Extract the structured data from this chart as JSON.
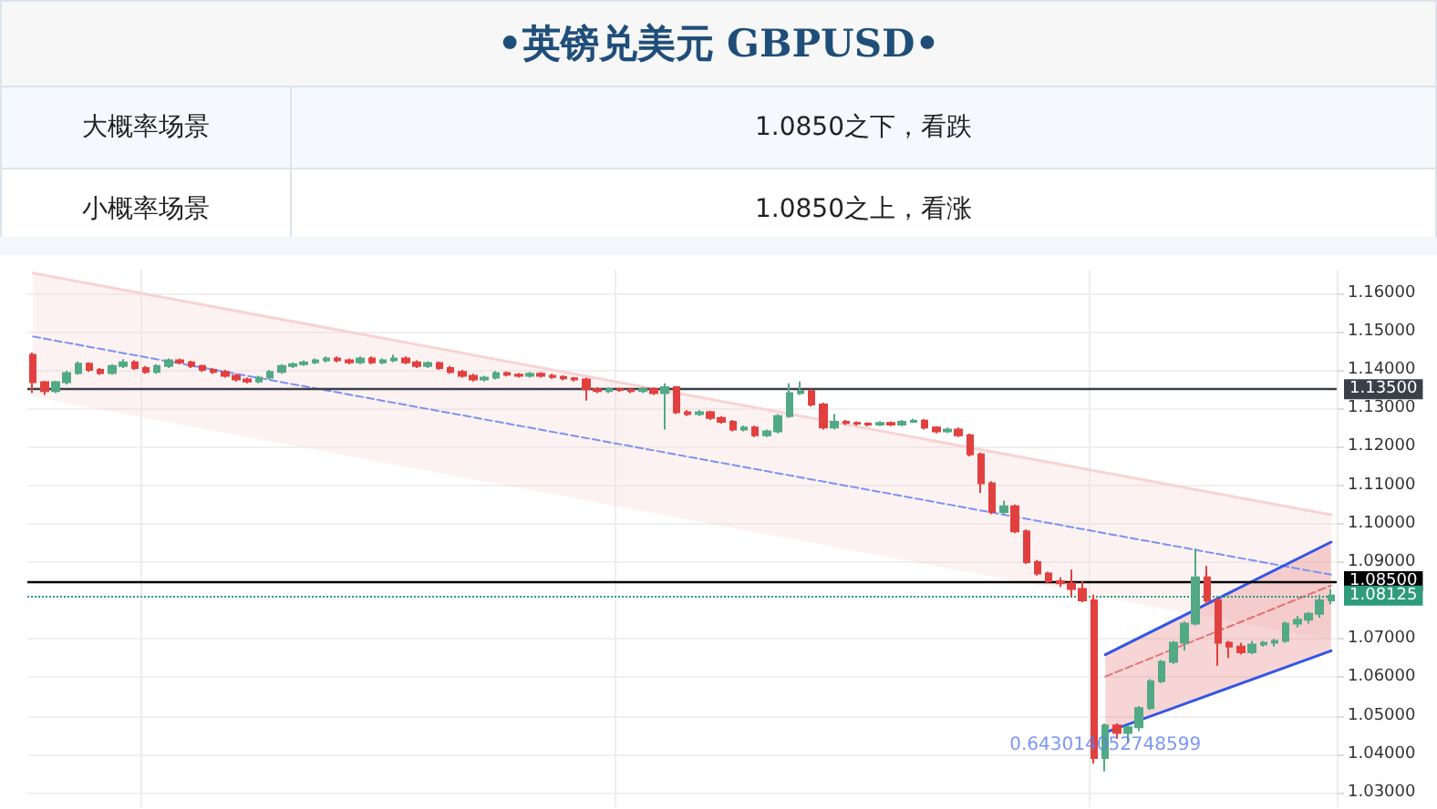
{
  "chart_data": {
    "type": "candlestick",
    "title": "•英镑兑美元   GBPUSD•",
    "annotations": [
      "大概率场景",
      "1.0850之下，看跌",
      "小概率场景",
      "1.0850之上，看涨",
      {
        "text": "0.643014052748599",
        "y": 1.0423
      }
    ],
    "categories": [
      null,
      null,
      null,
      null,
      null,
      null,
      null,
      null,
      null,
      null,
      null,
      null,
      null,
      null,
      null,
      null,
      null,
      null,
      null,
      null,
      null,
      null,
      null,
      null,
      null,
      null,
      null,
      null,
      null,
      null,
      null,
      null,
      null,
      null,
      null,
      null,
      null,
      null,
      null,
      null,
      null,
      null,
      null,
      null,
      null,
      null,
      null,
      null,
      null,
      null,
      null,
      null,
      null,
      null,
      null,
      null,
      null,
      null,
      null,
      null,
      null,
      null,
      null,
      null,
      null,
      null,
      null,
      null,
      null,
      null,
      null,
      null,
      null,
      null,
      null,
      null,
      null,
      null,
      null,
      null,
      null,
      null,
      null,
      null,
      null,
      null,
      null,
      null,
      null,
      null,
      null,
      null,
      null,
      null,
      null,
      null,
      null,
      null,
      null,
      null,
      null,
      null,
      null,
      null,
      null,
      null,
      null,
      null,
      null,
      null,
      null,
      null,
      null,
      null,
      null,
      null
    ],
    "ohlc": [
      [
        1.1439,
        1.1445,
        1.134,
        1.1368
      ],
      [
        1.1368,
        1.1372,
        1.1335,
        1.1345
      ],
      [
        1.1345,
        1.1372,
        1.134,
        1.1368
      ],
      [
        1.1368,
        1.1398,
        1.1362,
        1.1392
      ],
      [
        1.1392,
        1.1422,
        1.1388,
        1.1416
      ],
      [
        1.1416,
        1.142,
        1.1395,
        1.14
      ],
      [
        1.14,
        1.1405,
        1.1387,
        1.1392
      ],
      [
        1.1392,
        1.1415,
        1.1388,
        1.141
      ],
      [
        1.141,
        1.1428,
        1.1405,
        1.142
      ],
      [
        1.142,
        1.1425,
        1.14,
        1.1405
      ],
      [
        1.1405,
        1.141,
        1.139,
        1.1395
      ],
      [
        1.1395,
        1.1415,
        1.139,
        1.141
      ],
      [
        1.141,
        1.143,
        1.1405,
        1.1425
      ],
      [
        1.1425,
        1.143,
        1.1415,
        1.142
      ],
      [
        1.142,
        1.1424,
        1.1405,
        1.141
      ],
      [
        1.141,
        1.1414,
        1.1395,
        1.14
      ],
      [
        1.14,
        1.1405,
        1.139,
        1.1395
      ],
      [
        1.1395,
        1.14,
        1.138,
        1.1385
      ],
      [
        1.1385,
        1.139,
        1.137,
        1.1375
      ],
      [
        1.1375,
        1.138,
        1.1365,
        1.137
      ],
      [
        1.137,
        1.1385,
        1.1365,
        1.138
      ],
      [
        1.138,
        1.14,
        1.1375,
        1.1395
      ],
      [
        1.1395,
        1.1415,
        1.139,
        1.141
      ],
      [
        1.141,
        1.142,
        1.1405,
        1.1415
      ],
      [
        1.1415,
        1.1425,
        1.141,
        1.142
      ],
      [
        1.142,
        1.143,
        1.1415,
        1.1425
      ],
      [
        1.1425,
        1.1435,
        1.142,
        1.143
      ],
      [
        1.143,
        1.1435,
        1.142,
        1.1425
      ],
      [
        1.1425,
        1.143,
        1.1415,
        1.142
      ],
      [
        1.142,
        1.1435,
        1.1415,
        1.143
      ],
      [
        1.143,
        1.1435,
        1.1415,
        1.142
      ],
      [
        1.142,
        1.143,
        1.1415,
        1.1425
      ],
      [
        1.1425,
        1.144,
        1.142,
        1.143
      ],
      [
        1.143,
        1.1435,
        1.1415,
        1.142
      ],
      [
        1.142,
        1.1425,
        1.1405,
        1.141
      ],
      [
        1.141,
        1.1422,
        1.1405,
        1.1418
      ],
      [
        1.1418,
        1.1422,
        1.14,
        1.1405
      ],
      [
        1.1405,
        1.141,
        1.139,
        1.1395
      ],
      [
        1.1395,
        1.14,
        1.138,
        1.1385
      ],
      [
        1.1385,
        1.139,
        1.137,
        1.1375
      ],
      [
        1.1375,
        1.1385,
        1.137,
        1.138
      ],
      [
        1.138,
        1.1397,
        1.1375,
        1.1392
      ],
      [
        1.1392,
        1.1396,
        1.1383,
        1.1388
      ],
      [
        1.1388,
        1.1392,
        1.138,
        1.1385
      ],
      [
        1.1385,
        1.1395,
        1.138,
        1.139
      ],
      [
        1.139,
        1.1394,
        1.138,
        1.1385
      ],
      [
        1.1385,
        1.139,
        1.1377,
        1.1382
      ],
      [
        1.1382,
        1.1386,
        1.1373,
        1.1378
      ],
      [
        1.1378,
        1.1382,
        1.137,
        1.1375
      ],
      [
        1.1375,
        1.138,
        1.132,
        1.135
      ],
      [
        1.135,
        1.1355,
        1.134,
        1.1345
      ],
      [
        1.1345,
        1.1355,
        1.134,
        1.135
      ],
      [
        1.135,
        1.1354,
        1.1343,
        1.1348
      ],
      [
        1.1348,
        1.1352,
        1.134,
        1.1345
      ],
      [
        1.1345,
        1.1355,
        1.134,
        1.135
      ],
      [
        1.135,
        1.1354,
        1.1335,
        1.134
      ],
      [
        1.134,
        1.1365,
        1.1245,
        1.1355
      ],
      [
        1.1355,
        1.1358,
        1.1285,
        1.129
      ],
      [
        1.129,
        1.1295,
        1.128,
        1.1285
      ],
      [
        1.1285,
        1.1295,
        1.128,
        1.129
      ],
      [
        1.129,
        1.1294,
        1.127,
        1.1275
      ],
      [
        1.1275,
        1.128,
        1.126,
        1.1265
      ],
      [
        1.1265,
        1.127,
        1.124,
        1.1245
      ],
      [
        1.1245,
        1.1255,
        1.124,
        1.125
      ],
      [
        1.125,
        1.1255,
        1.1225,
        1.123
      ],
      [
        1.123,
        1.1245,
        1.1225,
        1.124
      ],
      [
        1.124,
        1.1285,
        1.1235,
        1.128
      ],
      [
        1.128,
        1.1365,
        1.1275,
        1.134
      ],
      [
        1.134,
        1.137,
        1.1335,
        1.1345
      ],
      [
        1.1345,
        1.135,
        1.1305,
        1.131
      ],
      [
        1.131,
        1.1315,
        1.1245,
        1.125
      ],
      [
        1.125,
        1.1285,
        1.1245,
        1.1265
      ],
      [
        1.1265,
        1.127,
        1.1257,
        1.1262
      ],
      [
        1.1262,
        1.1266,
        1.1255,
        1.126
      ],
      [
        1.126,
        1.1264,
        1.1253,
        1.1258
      ],
      [
        1.1258,
        1.1267,
        1.1254,
        1.1262
      ],
      [
        1.1262,
        1.1266,
        1.1254,
        1.1258
      ],
      [
        1.1258,
        1.127,
        1.1254,
        1.1265
      ],
      [
        1.1265,
        1.1273,
        1.1262,
        1.1268
      ],
      [
        1.1268,
        1.1272,
        1.1245,
        1.125
      ],
      [
        1.125,
        1.1254,
        1.1235,
        1.124
      ],
      [
        1.124,
        1.125,
        1.1236,
        1.1245
      ],
      [
        1.1245,
        1.125,
        1.1225,
        1.123
      ],
      [
        1.123,
        1.1234,
        1.1175,
        1.118
      ],
      [
        1.118,
        1.1185,
        1.108,
        1.1105
      ],
      [
        1.1105,
        1.111,
        1.1025,
        1.103
      ],
      [
        1.103,
        1.106,
        1.1025,
        1.1045
      ],
      [
        1.1045,
        1.105,
        1.0975,
        1.098
      ],
      [
        1.098,
        1.0985,
        1.0895,
        1.09
      ],
      [
        1.09,
        1.0905,
        1.0865,
        1.087
      ],
      [
        1.087,
        1.0875,
        1.0845,
        1.085
      ],
      [
        1.085,
        1.086,
        1.0835,
        1.0845
      ],
      [
        1.0845,
        1.088,
        1.081,
        1.083
      ],
      [
        1.083,
        1.085,
        1.0795,
        1.08
      ],
      [
        1.08,
        1.0815,
        1.0375,
        1.039
      ],
      [
        1.039,
        1.048,
        1.0355,
        1.0475
      ],
      [
        1.0475,
        1.048,
        1.044,
        1.0455
      ],
      [
        1.0455,
        1.0475,
        1.043,
        1.047
      ],
      [
        1.047,
        1.0525,
        1.046,
        1.052
      ],
      [
        1.052,
        1.0595,
        1.0515,
        1.059
      ],
      [
        1.059,
        1.0645,
        1.0585,
        1.064
      ],
      [
        1.064,
        1.0695,
        1.0635,
        1.069
      ],
      [
        1.069,
        1.0745,
        1.067,
        1.074
      ],
      [
        1.074,
        1.0935,
        1.0735,
        1.086
      ],
      [
        1.086,
        1.089,
        1.079,
        1.08
      ],
      [
        1.08,
        1.0805,
        1.063,
        1.069
      ],
      [
        1.069,
        1.0695,
        1.065,
        1.068
      ],
      [
        1.068,
        1.069,
        1.066,
        1.0665
      ],
      [
        1.0665,
        1.0695,
        1.066,
        1.0685
      ],
      [
        1.0685,
        1.0695,
        1.068,
        1.069
      ],
      [
        1.069,
        1.07,
        1.068,
        1.0695
      ],
      [
        1.0695,
        1.0745,
        1.069,
        1.074
      ],
      [
        1.074,
        1.076,
        1.073,
        1.075
      ],
      [
        1.075,
        1.077,
        1.074,
        1.0765
      ],
      [
        1.0765,
        1.0815,
        1.0755,
        1.08
      ],
      [
        1.08,
        1.083,
        1.079,
        1.08125
      ]
    ],
    "colors": [
      "#e2403f",
      "#e2403f",
      "#52a985",
      "#52a985",
      "#52a985",
      "#e2403f",
      "#e2403f",
      "#52a985",
      "#52a985",
      "#e2403f",
      "#e2403f",
      "#52a985",
      "#52a985",
      "#e2403f",
      "#e2403f",
      "#e2403f",
      "#e2403f",
      "#e2403f",
      "#e2403f",
      "#e2403f",
      "#52a985",
      "#52a985",
      "#52a985",
      "#52a985",
      "#52a985",
      "#52a985",
      "#52a985",
      "#e2403f",
      "#e2403f",
      "#52a985",
      "#e2403f",
      "#52a985",
      "#52a985",
      "#e2403f",
      "#e2403f",
      "#52a985",
      "#e2403f",
      "#e2403f",
      "#e2403f",
      "#e2403f",
      "#52a985",
      "#52a985",
      "#e2403f",
      "#e2403f",
      "#52a985",
      "#e2403f",
      "#e2403f",
      "#e2403f",
      "#e2403f",
      "#e2403f",
      "#e2403f",
      "#52a985",
      "#e2403f",
      "#e2403f",
      "#52a985",
      "#e2403f",
      "#52a985",
      "#e2403f",
      "#e2403f",
      "#52a985",
      "#e2403f",
      "#e2403f",
      "#e2403f",
      "#52a985",
      "#e2403f",
      "#52a985",
      "#52a985",
      "#52a985",
      "#52a985",
      "#e2403f",
      "#e2403f",
      "#52a985",
      "#e2403f",
      "#e2403f",
      "#e2403f",
      "#52a985",
      "#e2403f",
      "#52a985",
      "#52a985",
      "#e2403f",
      "#e2403f",
      "#52a985",
      "#e2403f",
      "#e2403f",
      "#e2403f",
      "#e2403f",
      "#52a985",
      "#e2403f",
      "#e2403f",
      "#e2403f",
      "#e2403f",
      "#e2403f",
      "#e2403f",
      "#e2403f",
      "#e2403f",
      "#52a985",
      "#e2403f",
      "#52a985",
      "#52a985",
      "#52a985",
      "#52a985",
      "#52a985",
      "#52a985",
      "#52a985",
      "#e2403f",
      "#e2403f",
      "#e2403f",
      "#e2403f",
      "#52a985",
      "#52a985",
      "#52a985",
      "#52a985",
      "#52a985",
      "#52a985",
      "#52a985",
      "#52a985"
    ],
    "series": [
      {
        "type": "line",
        "values": [
          1.1652,
          null,
          null,
          null,
          null,
          null,
          null,
          null,
          null,
          null,
          null,
          null,
          null,
          null,
          null,
          null,
          null,
          null,
          null,
          null,
          null,
          null,
          null,
          null,
          null,
          null,
          null,
          null,
          null,
          null,
          null,
          null,
          null,
          null,
          null,
          null,
          null,
          null,
          null,
          null,
          null,
          null,
          null,
          null,
          null,
          null,
          null,
          null,
          null,
          null,
          null,
          null,
          null,
          null,
          null,
          null,
          null,
          null,
          null,
          null,
          null,
          null,
          null,
          null,
          null,
          null,
          null,
          null,
          null,
          null,
          null,
          null,
          null,
          null,
          null,
          null,
          null,
          null,
          null,
          null,
          null,
          null,
          null,
          null,
          null,
          null,
          null,
          null,
          null,
          null,
          null,
          null,
          null,
          null,
          null,
          null,
          null,
          null,
          null,
          null,
          null,
          null,
          null,
          null,
          null,
          null,
          null,
          null,
          null,
          null,
          null,
          null,
          null,
          null,
          null,
          1.1023
        ],
        "lower": [
          1.133,
          null,
          null,
          null,
          null,
          null,
          null,
          null,
          null,
          null,
          null,
          null,
          null,
          null,
          null,
          null,
          null,
          null,
          null,
          null,
          null,
          null,
          null,
          null,
          null,
          null,
          null,
          null,
          null,
          null,
          null,
          null,
          null,
          null,
          null,
          null,
          null,
          null,
          null,
          null,
          null,
          null,
          null,
          null,
          null,
          null,
          null,
          null,
          null,
          null,
          null,
          null,
          null,
          null,
          null,
          null,
          null,
          null,
          null,
          null,
          null,
          null,
          null,
          null,
          null,
          null,
          null,
          null,
          null,
          null,
          null,
          null,
          null,
          null,
          null,
          null,
          null,
          null,
          null,
          null,
          null,
          null,
          null,
          null,
          null,
          null,
          null,
          null,
          null,
          null,
          null,
          null,
          null,
          null,
          null,
          null,
          null,
          null,
          null,
          null,
          null,
          null,
          null,
          null,
          null,
          null,
          null,
          null,
          null,
          null,
          null,
          null,
          null,
          null,
          null,
          1.0697
        ],
        "upper": [
          1.1652,
          null,
          null,
          null,
          null,
          null,
          null,
          null,
          null,
          null,
          null,
          null,
          null,
          null,
          null,
          null,
          null,
          null,
          null,
          null,
          null,
          null,
          null,
          null,
          null,
          null,
          null,
          null,
          null,
          null,
          null,
          null,
          null,
          null,
          null,
          null,
          null,
          null,
          null,
          null,
          null,
          null,
          null,
          null,
          null,
          null,
          null,
          null,
          null,
          null,
          null,
          null,
          null,
          null,
          null,
          null,
          null,
          null,
          null,
          null,
          null,
          null,
          null,
          null,
          null,
          null,
          null,
          null,
          null,
          null,
          null,
          null,
          null,
          null,
          null,
          null,
          null,
          null,
          null,
          null,
          null,
          null,
          null,
          null,
          null,
          null,
          null,
          null,
          null,
          null,
          null,
          null,
          null,
          null,
          null,
          null,
          null,
          null,
          null,
          null,
          null,
          null,
          null,
          null,
          null,
          null,
          null,
          null,
          null,
          null,
          null,
          null,
          null,
          null,
          null,
          1.1023
        ],
        "color": "#f8d3d3",
        "line_style": "solid"
      },
      {
        "type": "line",
        "values": [
          1.1487,
          null,
          null,
          null,
          null,
          null,
          null,
          null,
          null,
          null,
          null,
          null,
          null,
          null,
          null,
          null,
          null,
          null,
          null,
          null,
          null,
          null,
          null,
          null,
          null,
          null,
          null,
          null,
          null,
          null,
          null,
          null,
          null,
          null,
          null,
          null,
          null,
          null,
          null,
          null,
          null,
          null,
          null,
          null,
          null,
          null,
          null,
          null,
          null,
          null,
          null,
          null,
          null,
          null,
          null,
          null,
          null,
          null,
          null,
          null,
          null,
          null,
          null,
          null,
          null,
          null,
          null,
          null,
          null,
          null,
          null,
          null,
          null,
          null,
          null,
          null,
          null,
          null,
          null,
          null,
          null,
          null,
          null,
          null,
          null,
          null,
          null,
          null,
          null,
          null,
          null,
          null,
          null,
          null,
          null,
          null,
          null,
          null,
          null,
          null,
          null,
          null,
          null,
          null,
          null,
          null,
          null,
          null,
          null,
          null,
          null,
          null,
          null,
          null,
          null,
          1.0867
        ],
        "color": "#7b93f0",
        "line_style": "dashed"
      },
      {
        "type": "line",
        "values": [
          null,
          null,
          null,
          null,
          null,
          null,
          null,
          null,
          null,
          null,
          null,
          null,
          null,
          null,
          null,
          null,
          null,
          null,
          null,
          null,
          null,
          null,
          null,
          null,
          null,
          null,
          null,
          null,
          null,
          null,
          null,
          null,
          null,
          null,
          null,
          null,
          null,
          null,
          null,
          null,
          null,
          null,
          null,
          null,
          null,
          null,
          null,
          null,
          null,
          null,
          null,
          null,
          null,
          null,
          null,
          null,
          null,
          null,
          null,
          null,
          null,
          null,
          null,
          null,
          null,
          null,
          null,
          null,
          null,
          null,
          null,
          null,
          null,
          null,
          null,
          null,
          null,
          null,
          null,
          null,
          null,
          null,
          null,
          null,
          null,
          null,
          null,
          null,
          null,
          null,
          null,
          null,
          null,
          null,
          null,
          1.0602,
          null,
          null,
          null,
          null,
          null,
          null,
          null,
          null,
          null,
          null,
          null,
          null,
          null,
          null,
          null,
          null,
          null,
          null,
          null,
          1.0839
        ],
        "lower": [
          null,
          null,
          null,
          null,
          null,
          null,
          null,
          null,
          null,
          null,
          null,
          null,
          null,
          null,
          null,
          null,
          null,
          null,
          null,
          null,
          null,
          null,
          null,
          null,
          null,
          null,
          null,
          null,
          null,
          null,
          null,
          null,
          null,
          null,
          null,
          null,
          null,
          null,
          null,
          null,
          null,
          null,
          null,
          null,
          null,
          null,
          null,
          null,
          null,
          null,
          null,
          null,
          null,
          null,
          null,
          null,
          null,
          null,
          null,
          null,
          null,
          null,
          null,
          null,
          null,
          null,
          null,
          null,
          null,
          null,
          null,
          null,
          null,
          null,
          null,
          null,
          null,
          null,
          null,
          null,
          null,
          null,
          null,
          null,
          null,
          null,
          null,
          null,
          null,
          null,
          null,
          null,
          null,
          null,
          null,
          1.0456,
          null,
          null,
          null,
          null,
          null,
          null,
          null,
          null,
          null,
          null,
          null,
          null,
          null,
          null,
          null,
          null,
          null,
          null,
          null,
          1.0669
        ],
        "upper": [
          null,
          null,
          null,
          null,
          null,
          null,
          null,
          null,
          null,
          null,
          null,
          null,
          null,
          null,
          null,
          null,
          null,
          null,
          null,
          null,
          null,
          null,
          null,
          null,
          null,
          null,
          null,
          null,
          null,
          null,
          null,
          null,
          null,
          null,
          null,
          null,
          null,
          null,
          null,
          null,
          null,
          null,
          null,
          null,
          null,
          null,
          null,
          null,
          null,
          null,
          null,
          null,
          null,
          null,
          null,
          null,
          null,
          null,
          null,
          null,
          null,
          null,
          null,
          null,
          null,
          null,
          null,
          null,
          null,
          null,
          null,
          null,
          null,
          null,
          null,
          null,
          null,
          null,
          null,
          null,
          null,
          null,
          null,
          null,
          null,
          null,
          null,
          null,
          null,
          null,
          null,
          null,
          null,
          null,
          null,
          1.0659,
          null,
          null,
          null,
          null,
          null,
          null,
          null,
          null,
          null,
          null,
          null,
          null,
          null,
          null,
          null,
          null,
          null,
          null,
          null,
          1.0952
        ],
        "color": "#e57373",
        "line_style": "dashed"
      },
      {
        "type": "line",
        "values": [
          null,
          null,
          null,
          null,
          null,
          null,
          null,
          null,
          null,
          null,
          null,
          null,
          null,
          null,
          null,
          null,
          null,
          null,
          null,
          null,
          null,
          null,
          null,
          null,
          null,
          null,
          null,
          null,
          null,
          null,
          null,
          null,
          null,
          null,
          null,
          null,
          null,
          null,
          null,
          null,
          null,
          null,
          null,
          null,
          null,
          null,
          null,
          null,
          null,
          null,
          null,
          null,
          null,
          null,
          null,
          null,
          null,
          null,
          null,
          null,
          null,
          null,
          null,
          null,
          null,
          null,
          null,
          null,
          null,
          null,
          null,
          null,
          null,
          null,
          null,
          null,
          null,
          null,
          null,
          null,
          null,
          null,
          null,
          null,
          null,
          null,
          null,
          null,
          null,
          null,
          null,
          null,
          null,
          null,
          null,
          1.0659,
          null,
          null,
          null,
          null,
          null,
          null,
          null,
          null,
          null,
          null,
          null,
          null,
          null,
          null,
          null,
          null,
          null,
          null,
          null,
          1.0952
        ],
        "color": "#3355e6",
        "line_style": "solid"
      },
      {
        "type": "line",
        "values": [
          null,
          null,
          null,
          null,
          null,
          null,
          null,
          null,
          null,
          null,
          null,
          null,
          null,
          null,
          null,
          null,
          null,
          null,
          null,
          null,
          null,
          null,
          null,
          null,
          null,
          null,
          null,
          null,
          null,
          null,
          null,
          null,
          null,
          null,
          null,
          null,
          null,
          null,
          null,
          null,
          null,
          null,
          null,
          null,
          null,
          null,
          null,
          null,
          null,
          null,
          null,
          null,
          null,
          null,
          null,
          null,
          null,
          null,
          null,
          null,
          null,
          null,
          null,
          null,
          null,
          null,
          null,
          null,
          null,
          null,
          null,
          null,
          null,
          null,
          null,
          null,
          null,
          null,
          null,
          null,
          null,
          null,
          null,
          null,
          null,
          null,
          null,
          null,
          null,
          null,
          null,
          null,
          null,
          null,
          null,
          1.0456,
          null,
          null,
          null,
          null,
          null,
          null,
          null,
          null,
          null,
          null,
          null,
          null,
          null,
          null,
          null,
          null,
          null,
          null,
          null,
          1.0669
        ],
        "color": "#3355e6",
        "line_style": "solid"
      }
    ],
    "ref_lines": [
      {
        "axis": "y",
        "value": 1.135,
        "label": "1.13500",
        "color": "#3b3f4a",
        "line_style": "solid"
      },
      {
        "axis": "y",
        "value": 1.085,
        "label": "1.08500",
        "color": "#000000",
        "line_style": "solid"
      },
      {
        "axis": "y",
        "value": 1.08125,
        "label": "1.08125",
        "color": "#2e9c7a",
        "line_style": "dotted"
      }
    ],
    "ylim": [
      1.0262,
      1.1661
    ],
    "yticks": [
      {
        "value": 1.03,
        "label": "1.03000"
      },
      {
        "value": 1.04,
        "label": "1.04000"
      },
      {
        "value": 1.05,
        "label": "1.05000"
      },
      {
        "value": 1.06,
        "label": "1.06000"
      },
      {
        "value": 1.07,
        "label": "1.07000"
      },
      {
        "value": 1.09,
        "label": "1.09000"
      },
      {
        "value": 1.1,
        "label": "1.10000"
      },
      {
        "value": 1.11,
        "label": "1.11000"
      },
      {
        "value": 1.12,
        "label": "1.12000"
      },
      {
        "value": 1.13,
        "label": "1.13000"
      },
      {
        "value": 1.14,
        "label": "1.14000"
      },
      {
        "value": 1.15,
        "label": "1.15000"
      },
      {
        "value": 1.16,
        "label": "1.16000"
      }
    ],
    "tick_labels": "y",
    "grid": true
  }
}
